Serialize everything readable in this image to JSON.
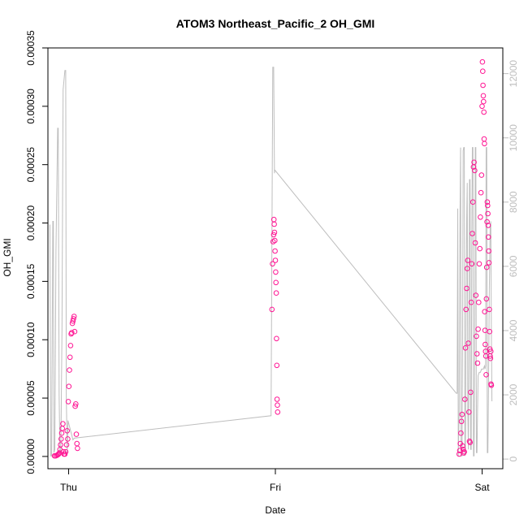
{
  "chart_data": {
    "type": "scatter",
    "title": "ATOM3 Northeast_Pacific_2 OH_GMI",
    "xlabel": "Date",
    "ylabel": "OH_GMI",
    "x_tick_labels": [
      "Thu",
      "Fri",
      "Sat"
    ],
    "x_range": [
      "Wed 21:36",
      "Sat 02:24"
    ],
    "ylim_left": [
      -1.05e-05,
      0.00035
    ],
    "y_ticks_left": [
      "0.00000",
      "0.00005",
      "0.00010",
      "0.00015",
      "0.00020",
      "0.00025",
      "0.00030",
      "0.00035"
    ],
    "ylim_right": [
      -300,
      12800
    ],
    "y_ticks_right": [
      "0",
      "2000",
      "4000",
      "6000",
      "8000",
      "10000",
      "12000"
    ],
    "grid": false,
    "colors": {
      "points": "#ff1493",
      "altitude_line": "#bebebe",
      "right_axis": "#bdbdbd",
      "frame": "#000000"
    },
    "series": [
      {
        "role": "points",
        "axis": "left",
        "points": [
          [
            "Wed 22:22",
            5e-07
          ],
          [
            "Wed 22:30",
            5e-07
          ],
          [
            "Wed 22:38",
            1e-06
          ],
          [
            "Wed 22:45",
            1.5e-06
          ],
          [
            "Wed 22:50",
            2e-06
          ],
          [
            "Wed 22:56",
            3e-06
          ],
          [
            "Wed 23:00",
            6e-06
          ],
          [
            "Wed 23:04",
            1e-05
          ],
          [
            "Wed 23:08",
            1.5e-05
          ],
          [
            "Wed 23:12",
            2e-05
          ],
          [
            "Wed 23:16",
            2.4e-05
          ],
          [
            "Wed 23:20",
            2.8e-05
          ],
          [
            "Wed 23:24",
            4e-06
          ],
          [
            "Wed 23:28",
            2e-06
          ],
          [
            "Wed 23:34",
            2e-06
          ],
          [
            "Wed 23:40",
            4e-06
          ],
          [
            "Wed 23:46",
            1e-05
          ],
          [
            "Wed 23:50",
            2.2e-05
          ],
          [
            "Wed 23:54",
            1.5e-05
          ],
          [
            "Wed 23:58",
            4.7e-05
          ],
          [
            "Thu 00:02",
            6e-05
          ],
          [
            "Thu 00:06",
            7.4e-05
          ],
          [
            "Thu 00:10",
            8.5e-05
          ],
          [
            "Thu 00:14",
            9.5e-05
          ],
          [
            "Thu 00:18",
            0.000105
          ],
          [
            "Thu 00:22",
            0.000106
          ],
          [
            "Thu 00:26",
            0.000114
          ],
          [
            "Thu 00:30",
            0.000116
          ],
          [
            "Thu 00:34",
            0.000118
          ],
          [
            "Thu 00:38",
            0.00012
          ],
          [
            "Thu 00:42",
            0.000107
          ],
          [
            "Thu 00:46",
            4.3e-05
          ],
          [
            "Thu 00:50",
            4.5e-05
          ],
          [
            "Thu 00:54",
            1.9e-05
          ],
          [
            "Thu 00:58",
            1.1e-05
          ],
          [
            "Thu 01:02",
            7e-06
          ],
          [
            "Thu 23:36",
            0.000126
          ],
          [
            "Thu 23:40",
            0.000165
          ],
          [
            "Thu 23:44",
            0.000184
          ],
          [
            "Thu 23:48",
            0.00019
          ],
          [
            "Thu 23:50",
            0.000203
          ],
          [
            "Thu 23:52",
            0.000199
          ],
          [
            "Thu 23:54",
            0.000192
          ],
          [
            "Thu 23:56",
            0.000185
          ],
          [
            "Thu 23:58",
            0.000176
          ],
          [
            "Fri 00:00",
            0.000168
          ],
          [
            "Fri 00:02",
            0.000158
          ],
          [
            "Fri 00:04",
            0.000149
          ],
          [
            "Fri 00:06",
            0.00014
          ],
          [
            "Fri 00:08",
            0.000101
          ],
          [
            "Fri 00:10",
            7.8e-05
          ],
          [
            "Fri 00:12",
            4.9e-05
          ],
          [
            "Fri 00:14",
            4.4e-05
          ],
          [
            "Fri 00:16",
            3.8e-05
          ],
          [
            "Fri 21:20",
            2e-06
          ],
          [
            "Fri 21:24",
            5e-06
          ],
          [
            "Fri 21:28",
            1.1e-05
          ],
          [
            "Fri 21:32",
            2e-05
          ],
          [
            "Fri 21:36",
            3e-05
          ],
          [
            "Fri 21:40",
            3.6e-05
          ],
          [
            "Fri 21:44",
            9e-06
          ],
          [
            "Fri 21:48",
            6e-06
          ],
          [
            "Fri 21:52",
            3e-06
          ],
          [
            "Fri 21:56",
            4e-06
          ],
          [
            "Fri 22:00",
            4.9e-05
          ],
          [
            "Fri 22:04",
            9.3e-05
          ],
          [
            "Fri 22:08",
            0.000126
          ],
          [
            "Fri 22:12",
            0.000144
          ],
          [
            "Fri 22:16",
            0.000161
          ],
          [
            "Fri 22:20",
            0.000168
          ],
          [
            "Fri 22:24",
            9.7e-05
          ],
          [
            "Fri 22:28",
            3.8e-05
          ],
          [
            "Fri 22:32",
            1.3e-05
          ],
          [
            "Fri 22:36",
            1.2e-05
          ],
          [
            "Fri 22:40",
            5.5e-05
          ],
          [
            "Fri 22:44",
            0.000132
          ],
          [
            "Fri 22:48",
            0.000165
          ],
          [
            "Fri 22:52",
            0.000191
          ],
          [
            "Fri 22:56",
            0.000218
          ],
          [
            "Fri 23:00",
            0.000248
          ],
          [
            "Fri 23:04",
            0.000252
          ],
          [
            "Fri 23:08",
            0.000245
          ],
          [
            "Fri 23:12",
            0.000183
          ],
          [
            "Fri 23:16",
            0.000138
          ],
          [
            "Fri 23:20",
            0.000103
          ],
          [
            "Fri 23:24",
            8.8e-05
          ],
          [
            "Fri 23:28",
            8e-05
          ],
          [
            "Fri 23:32",
            0.000109
          ],
          [
            "Fri 23:36",
            0.000132
          ],
          [
            "Fri 23:40",
            0.000165
          ],
          [
            "Fri 23:44",
            0.000178
          ],
          [
            "Fri 23:48",
            0.000205
          ],
          [
            "Fri 23:52",
            0.000226
          ],
          [
            "Fri 23:56",
            0.000241
          ],
          [
            "Sat 00:00",
            0.0003
          ],
          [
            "Sat 00:02",
            0.000338
          ],
          [
            "Sat 00:04",
            0.00033
          ],
          [
            "Sat 00:06",
            0.000318
          ],
          [
            "Sat 00:08",
            0.000309
          ],
          [
            "Sat 00:10",
            0.000304
          ],
          [
            "Sat 00:12",
            0.000295
          ],
          [
            "Sat 00:14",
            0.000272
          ],
          [
            "Sat 00:16",
            0.000268
          ],
          [
            "Sat 00:18",
            0.000124
          ],
          [
            "Sat 00:20",
            0.000108
          ],
          [
            "Sat 00:22",
            9.6e-05
          ],
          [
            "Sat 00:24",
            9e-05
          ],
          [
            "Sat 00:26",
            8.6e-05
          ],
          [
            "Sat 00:28",
            7e-05
          ],
          [
            "Sat 00:30",
            0.000135
          ],
          [
            "Sat 00:32",
            0.000162
          ],
          [
            "Sat 00:34",
            0.000201
          ],
          [
            "Sat 00:36",
            0.000218
          ],
          [
            "Sat 00:38",
            0.000215
          ],
          [
            "Sat 00:40",
            0.000208
          ],
          [
            "Sat 00:42",
            0.000198
          ],
          [
            "Sat 00:44",
            0.000188
          ],
          [
            "Sat 00:46",
            0.000176
          ],
          [
            "Sat 00:48",
            0.000166
          ],
          [
            "Sat 00:50",
            0.000126
          ],
          [
            "Sat 00:52",
            0.000107
          ],
          [
            "Sat 00:54",
            9.2e-05
          ],
          [
            "Sat 00:56",
            8.6e-05
          ],
          [
            "Sat 00:58",
            8.4e-05
          ],
          [
            "Sat 01:00",
            9e-05
          ],
          [
            "Sat 01:02",
            6.2e-05
          ],
          [
            "Sat 01:04",
            6.1e-05
          ]
        ]
      },
      {
        "role": "altitude_line",
        "axis": "right",
        "points": [
          [
            "Wed 21:50",
            7300
          ],
          [
            "Wed 21:56",
            100
          ],
          [
            "Wed 22:02",
            100
          ],
          [
            "Wed 22:10",
            7400
          ],
          [
            "Wed 22:14",
            7400
          ],
          [
            "Wed 22:18",
            200
          ],
          [
            "Wed 22:24",
            300
          ],
          [
            "Wed 22:32",
            6500
          ],
          [
            "Wed 22:38",
            8500
          ],
          [
            "Wed 22:44",
            10300
          ],
          [
            "Wed 22:48",
            10300
          ],
          [
            "Wed 22:54",
            2000
          ],
          [
            "Wed 23:00",
            200
          ],
          [
            "Wed 23:06",
            200
          ],
          [
            "Wed 23:14",
            4000
          ],
          [
            "Wed 23:22",
            11500
          ],
          [
            "Wed 23:28",
            11800
          ],
          [
            "Wed 23:34",
            12100
          ],
          [
            "Wed 23:40",
            12100
          ],
          [
            "Wed 23:44",
            2000
          ],
          [
            "Wed 23:50",
            200
          ],
          [
            "Wed 23:56",
            1200
          ],
          [
            "Thu 00:30",
            600
          ],
          [
            "Thu 00:40",
            650
          ],
          [
            "Thu 23:30",
            1350
          ],
          [
            "Thu 23:42",
            12200
          ],
          [
            "Thu 23:48",
            12200
          ],
          [
            "Thu 23:54",
            8900
          ],
          [
            "Thu 23:56",
            9000
          ],
          [
            "Fri 21:00",
            2050
          ],
          [
            "Fri 21:06",
            2050
          ],
          [
            "Fri 21:10",
            7800
          ],
          [
            "Fri 21:14",
            100
          ],
          [
            "Fri 21:20",
            1500
          ],
          [
            "Fri 21:26",
            7500
          ],
          [
            "Fri 21:30",
            9700
          ],
          [
            "Fri 21:34",
            100
          ],
          [
            "Fri 21:40",
            100
          ],
          [
            "Fri 21:44",
            4000
          ],
          [
            "Fri 21:48",
            9600
          ],
          [
            "Fri 21:52",
            9700
          ],
          [
            "Fri 21:56",
            9700
          ],
          [
            "Fri 22:00",
            100
          ],
          [
            "Fri 22:04",
            200
          ],
          [
            "Fri 22:08",
            4200
          ],
          [
            "Fri 22:12",
            7400
          ],
          [
            "Fri 22:16",
            8600
          ],
          [
            "Fri 22:20",
            1500
          ],
          [
            "Fri 22:24",
            300
          ],
          [
            "Fri 22:28",
            3000
          ],
          [
            "Fri 22:32",
            8700
          ],
          [
            "Fri 22:36",
            8700
          ],
          [
            "Fri 22:40",
            300
          ],
          [
            "Fri 22:44",
            300
          ],
          [
            "Fri 22:48",
            6800
          ],
          [
            "Fri 22:52",
            9700
          ],
          [
            "Fri 22:56",
            9700
          ],
          [
            "Fri 23:00",
            100
          ],
          [
            "Fri 23:04",
            100
          ],
          [
            "Fri 23:08",
            3000
          ],
          [
            "Fri 23:12",
            9700
          ],
          [
            "Fri 23:16",
            9700
          ],
          [
            "Fri 23:20",
            200
          ],
          [
            "Fri 23:24",
            200
          ],
          [
            "Fri 23:28",
            1500
          ],
          [
            "Fri 23:32",
            2600
          ],
          [
            "Fri 23:40",
            2700
          ],
          [
            "Fri 23:48",
            2700
          ],
          [
            "Fri 23:56",
            2800
          ],
          [
            "Sat 00:00",
            2800
          ],
          [
            "Sat 00:08",
            2800
          ],
          [
            "Sat 00:16",
            2900
          ],
          [
            "Sat 00:20",
            2800
          ],
          [
            "Sat 00:24",
            2900
          ],
          [
            "Sat 00:28",
            9700
          ],
          [
            "Sat 00:32",
            9700
          ],
          [
            "Sat 00:36",
            200
          ],
          [
            "Sat 00:40",
            200
          ],
          [
            "Sat 00:44",
            2000
          ],
          [
            "Sat 00:50",
            5300
          ],
          [
            "Sat 00:56",
            7200
          ],
          [
            "Sat 01:00",
            7400
          ],
          [
            "Sat 01:04",
            4000
          ],
          [
            "Sat 01:08",
            1800
          ]
        ]
      }
    ]
  }
}
